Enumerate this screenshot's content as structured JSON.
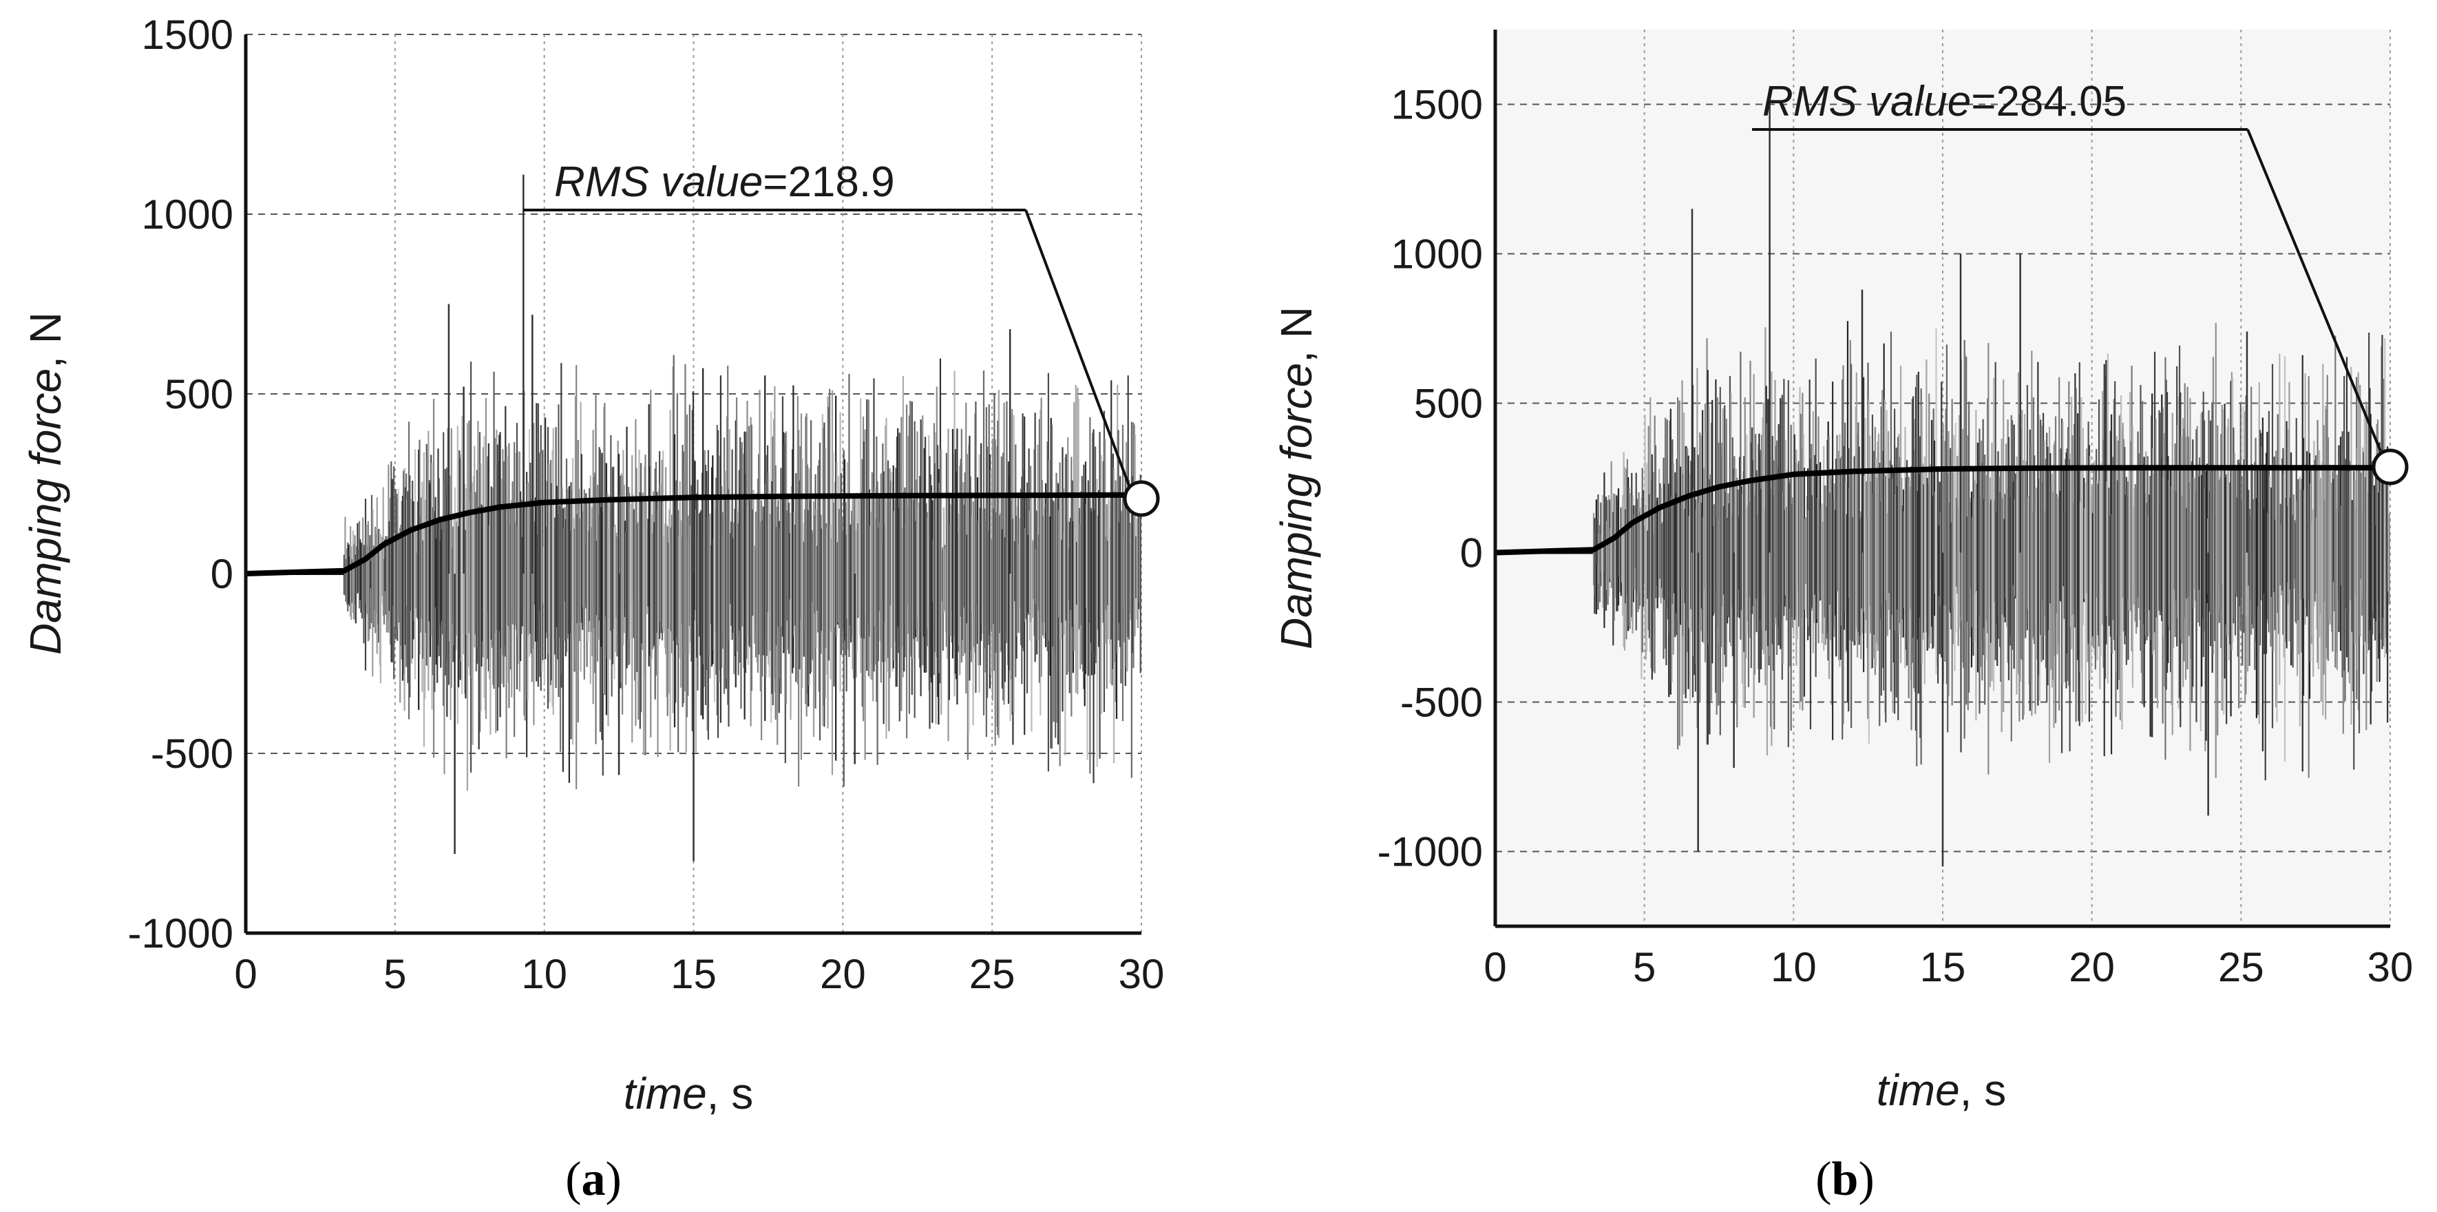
{
  "chart_data": [
    {
      "type": "line",
      "panel_label_prefix": "(",
      "panel_label_letter": "a",
      "panel_label_suffix": ")",
      "xlabel_main": "time",
      "xlabel_unit": ", s",
      "ylabel_main": "Damping force",
      "ylabel_unit": ", N",
      "xlim": [
        0,
        30
      ],
      "ylim": [
        -1000,
        1500
      ],
      "xticks": [
        0,
        5,
        10,
        15,
        20,
        25,
        30
      ],
      "yticks": [
        -1000,
        -500,
        0,
        500,
        1000,
        1500
      ],
      "xtick_labels": [
        "0",
        "5",
        "10",
        "15",
        "20",
        "25",
        "30"
      ],
      "ytick_labels": [
        "-1000",
        "-500",
        "0",
        "500",
        "1000",
        "1500"
      ],
      "grid": true,
      "annotation_name": "RMS value",
      "annotation_eq": "=",
      "annotation_value": "218.9",
      "annotation_anchor": {
        "x": 30,
        "y": 218.9
      },
      "series": [
        {
          "name": "damping force",
          "signal": {
            "start": 3.3,
            "end": 30,
            "seed": 11,
            "rms": 218.9,
            "spikes": [
              [
                6.8,
                750
              ],
              [
                7.0,
                -780
              ],
              [
                9.3,
                1110
              ],
              [
                9.6,
                720
              ],
              [
                15.0,
                -800
              ],
              [
                20.4,
                -530
              ],
              [
                25.6,
                680
              ],
              [
                7.3,
                520
              ],
              [
                12.5,
                -560
              ]
            ]
          }
        },
        {
          "name": "RMS value",
          "x": [
            0,
            3.3,
            4.0,
            4.6,
            5.5,
            6.5,
            7.5,
            8.5,
            10,
            12,
            15,
            18,
            22,
            26,
            30
          ],
          "y": [
            0,
            8,
            40,
            80,
            120,
            150,
            170,
            185,
            198,
            205,
            212,
            215,
            217,
            218,
            218.9
          ]
        }
      ]
    },
    {
      "type": "line",
      "panel_label_prefix": "(",
      "panel_label_letter": "b",
      "panel_label_suffix": ")",
      "xlabel_main": "time",
      "xlabel_unit": ", s",
      "ylabel_main": "Damping force",
      "ylabel_unit": ", N",
      "xlim": [
        0,
        30
      ],
      "ylim": [
        -1250,
        1750
      ],
      "xticks": [
        0,
        5,
        10,
        15,
        20,
        25,
        30
      ],
      "yticks": [
        -1000,
        -500,
        0,
        500,
        1000,
        1500
      ],
      "xtick_labels": [
        "0",
        "5",
        "10",
        "15",
        "20",
        "25",
        "30"
      ],
      "ytick_labels": [
        "-1000",
        "-500",
        "0",
        "500",
        "1000",
        "1500"
      ],
      "grid": true,
      "annotation_name": "RMS value",
      "annotation_eq": "=",
      "annotation_value": "284.05",
      "annotation_anchor": {
        "x": 30,
        "y": 284.05
      },
      "series": [
        {
          "name": "damping force",
          "signal": {
            "start": 3.3,
            "end": 30,
            "seed": 29,
            "rms": 284.05,
            "spikes": [
              [
                6.6,
                1150
              ],
              [
                6.8,
                -1000
              ],
              [
                9.2,
                1520
              ],
              [
                12.3,
                880
              ],
              [
                15.0,
                -1050
              ],
              [
                15.6,
                1000
              ],
              [
                17.6,
                1000
              ],
              [
                23.9,
                -880
              ],
              [
                25.2,
                740
              ],
              [
                8.0,
                -720
              ]
            ]
          }
        },
        {
          "name": "RMS value",
          "x": [
            0,
            3.3,
            4.0,
            4.6,
            5.5,
            6.5,
            7.5,
            8.5,
            10,
            12,
            15,
            18,
            22,
            26,
            30
          ],
          "y": [
            0,
            10,
            50,
            100,
            150,
            190,
            220,
            240,
            262,
            272,
            280,
            283,
            284,
            284,
            284.05
          ]
        }
      ]
    }
  ]
}
